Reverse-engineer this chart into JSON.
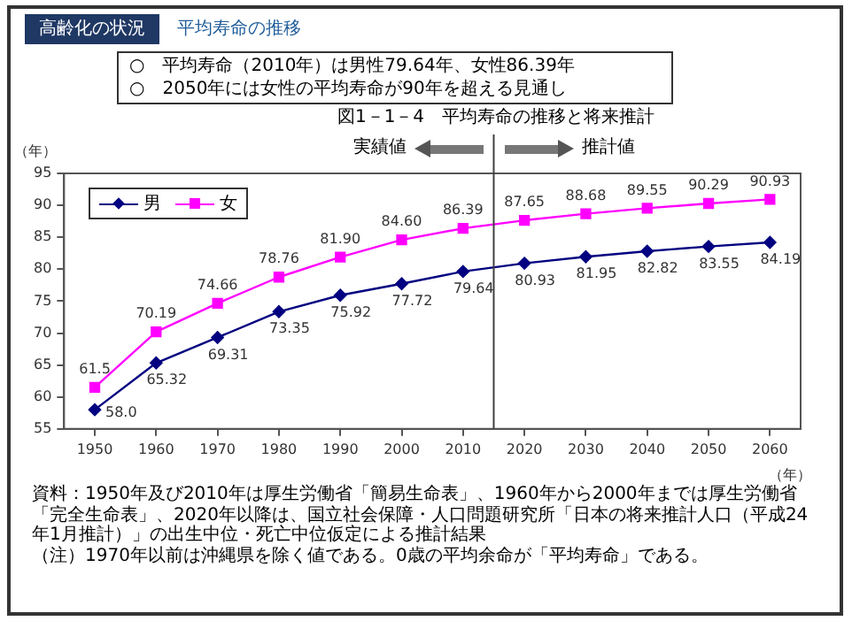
{
  "chart_data": {
    "type": "line",
    "title": "図1－1－4　平均寿命の推移と将来推計",
    "ylabel": "（年）",
    "xlabel": "（年）",
    "x": [
      1950,
      1960,
      1970,
      1980,
      1990,
      2000,
      2010,
      2020,
      2030,
      2040,
      2050,
      2060
    ],
    "xlim": [
      1945,
      2065
    ],
    "xticks": [
      1950,
      1960,
      1970,
      1980,
      1990,
      2000,
      2010,
      2020,
      2030,
      2040,
      2050,
      2060
    ],
    "ylim": [
      55,
      95
    ],
    "yticks": [
      55,
      60,
      65,
      70,
      75,
      80,
      85,
      90,
      95
    ],
    "grid": false,
    "legend": "top left",
    "series": [
      {
        "name": "男",
        "color": "#000080",
        "marker": "diamond",
        "values": [
          58.0,
          65.32,
          69.31,
          73.35,
          75.92,
          77.72,
          79.64,
          80.93,
          81.95,
          82.82,
          83.55,
          84.19
        ],
        "value_labels": [
          "58.0",
          "65.32",
          "69.31",
          "73.35",
          "75.92",
          "77.72",
          "79.64",
          "80.93",
          "81.95",
          "82.82",
          "83.55",
          "84.19"
        ]
      },
      {
        "name": "女",
        "color": "#ff00ff",
        "marker": "square",
        "values": [
          61.5,
          70.19,
          74.66,
          78.76,
          81.9,
          84.6,
          86.39,
          87.65,
          88.68,
          89.55,
          90.29,
          90.93
        ],
        "value_labels": [
          "61.5",
          "70.19",
          "74.66",
          "78.76",
          "81.90",
          "84.60",
          "86.39",
          "87.65",
          "88.68",
          "89.55",
          "90.29",
          "90.93"
        ]
      }
    ],
    "ref_lines": [
      {
        "axis": "x",
        "value": 2015,
        "color": "#404040"
      }
    ],
    "annotations": [
      "高齢化の状況",
      "平均寿命の推移",
      "○　平均寿命（2010年）は男性79.64年、女性86.39年",
      "○　2050年には女性の平均寿命が90年を超える見通し",
      "実績値",
      "推計値",
      "資料：1950年及び2010年は厚生労働省「簡易生命表」、1960年から2000年までは厚生労働省「完全生命表」、2020年以降は、国立社会保障・人口問題研究所「日本の将来推計人口（平成24年1月推計）」の出生中位・死亡中位仮定による推計結果",
      "（注）1970年以前は沖縄県を除く値である。0歳の平均余命が「平均寿命」である。"
    ]
  }
}
